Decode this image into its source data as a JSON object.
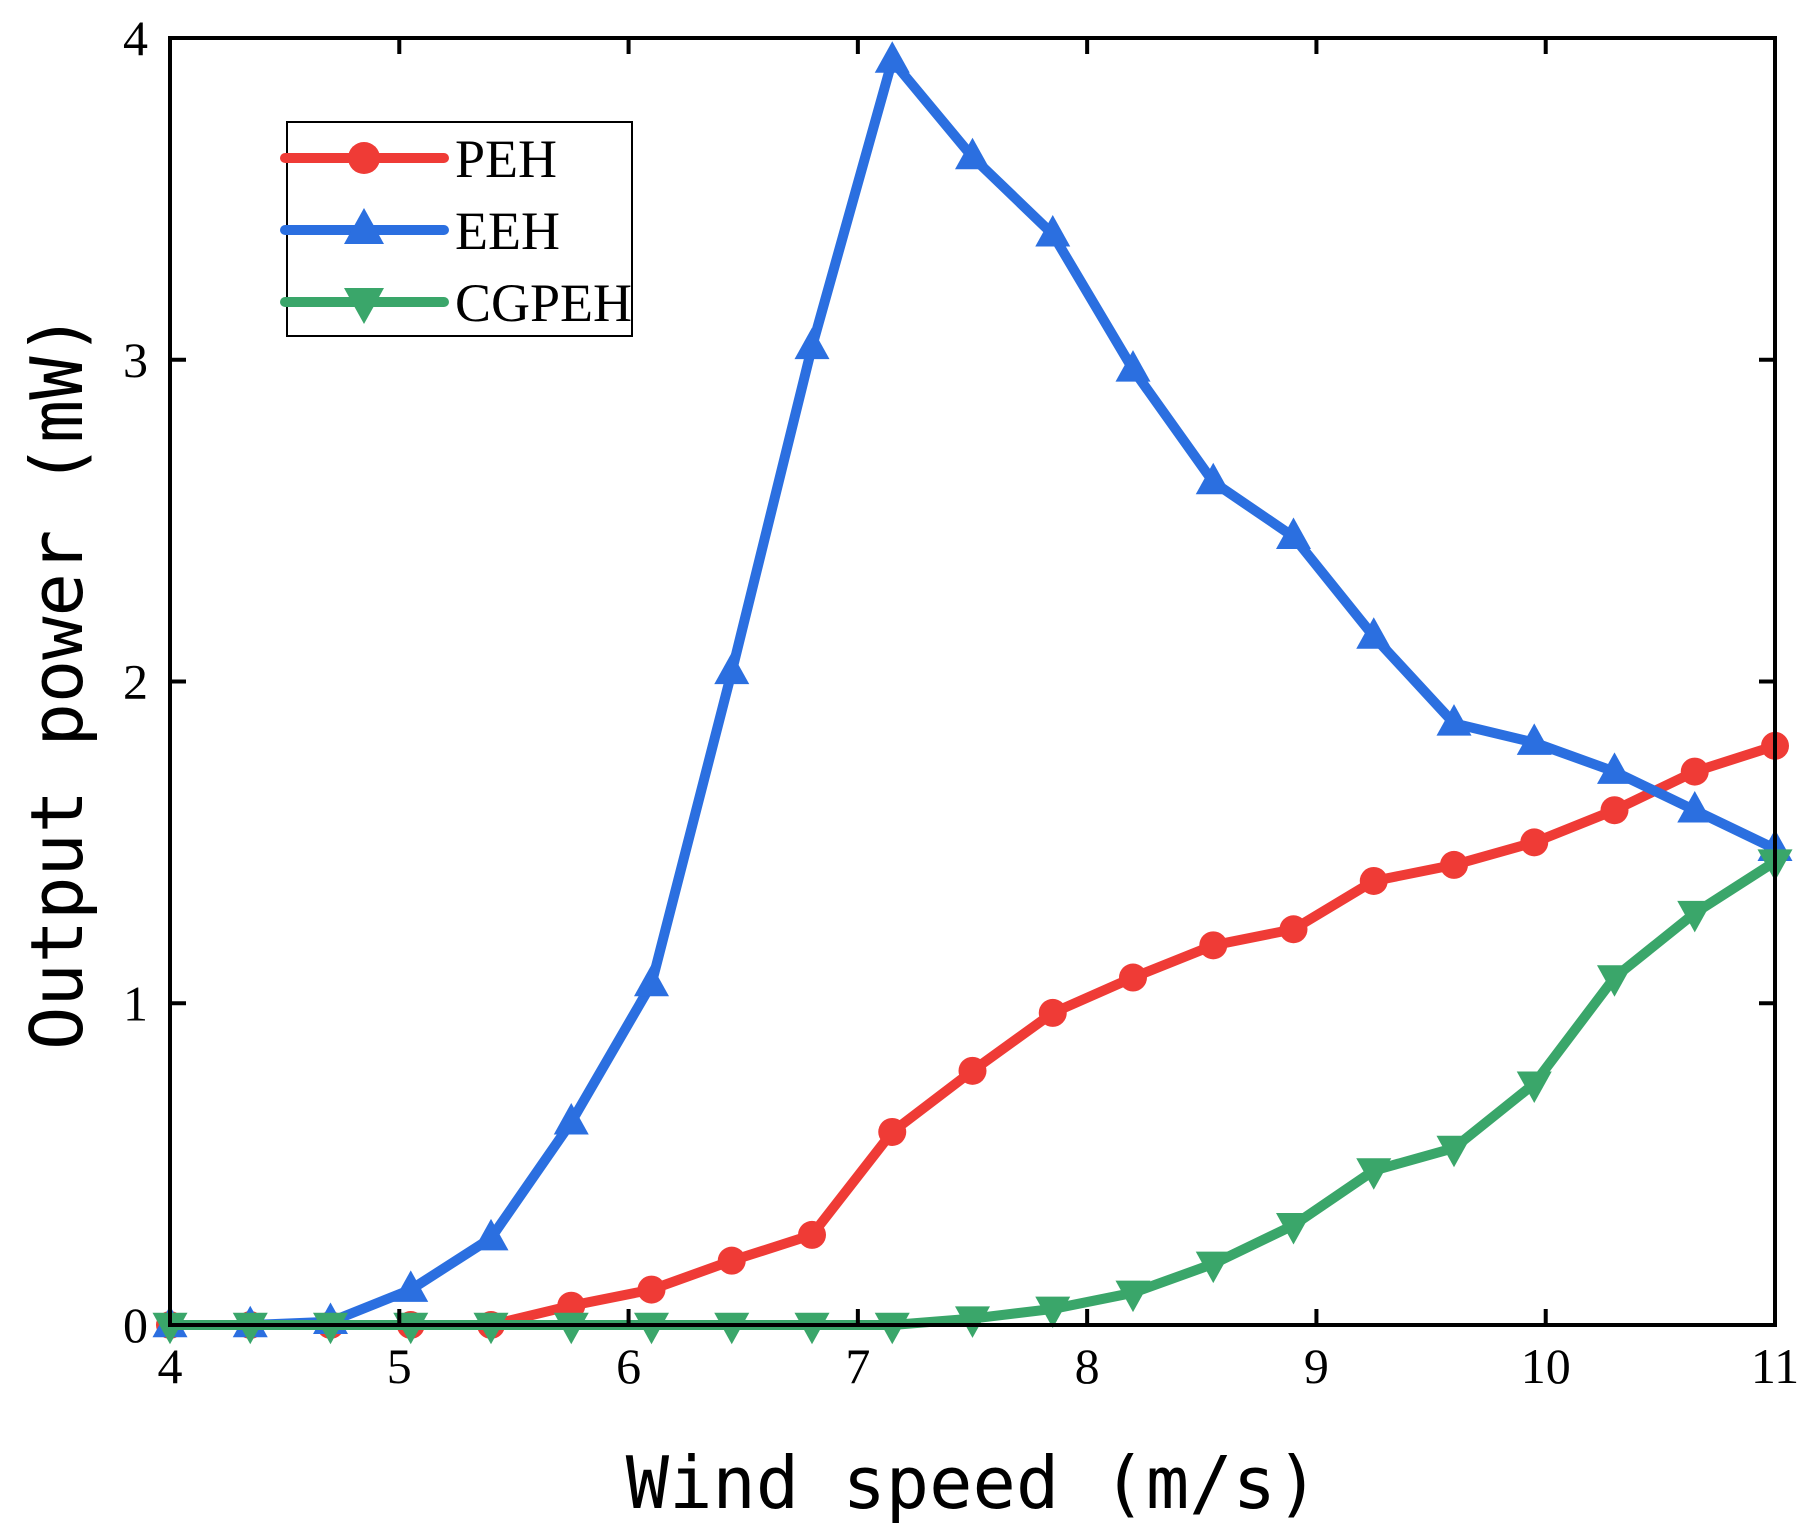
{
  "chart_data": {
    "type": "line",
    "title": "",
    "xlabel": "Wind speed (m/s)",
    "ylabel": "Output power (mW)",
    "xlim": [
      4,
      11
    ],
    "ylim": [
      0,
      4
    ],
    "xticks": [
      4,
      5,
      6,
      7,
      8,
      9,
      10,
      11
    ],
    "yticks": [
      0,
      1,
      2,
      3,
      4
    ],
    "grid": false,
    "legend_position": "top-left",
    "x": [
      4.0,
      4.35,
      4.7,
      5.05,
      5.4,
      5.75,
      6.1,
      6.45,
      6.8,
      7.15,
      7.5,
      7.85,
      8.2,
      8.55,
      8.9,
      9.25,
      9.6,
      9.95,
      10.3,
      10.65,
      11.0
    ],
    "series": [
      {
        "name": "PEH",
        "color": "#ef3b36",
        "marker": "circle",
        "values": [
          0,
          0,
          0,
          0,
          0,
          0.06,
          0.11,
          0.2,
          0.28,
          0.6,
          0.79,
          0.97,
          1.08,
          1.18,
          1.23,
          1.38,
          1.43,
          1.5,
          1.6,
          1.72,
          1.8
        ]
      },
      {
        "name": "EEH",
        "color": "#2b6fe0",
        "marker": "triangle-up",
        "values": [
          0,
          0,
          0.01,
          0.11,
          0.27,
          0.63,
          1.06,
          2.03,
          3.04,
          3.93,
          3.63,
          3.39,
          2.97,
          2.62,
          2.45,
          2.14,
          1.87,
          1.81,
          1.72,
          1.6,
          1.48
        ]
      },
      {
        "name": "CGPEH",
        "color": "#3aa66a",
        "marker": "triangle-down",
        "values": [
          0,
          0,
          0,
          0,
          0,
          0,
          0,
          0,
          0,
          0,
          0.02,
          0.05,
          0.1,
          0.19,
          0.31,
          0.48,
          0.55,
          0.75,
          1.08,
          1.28,
          1.44
        ]
      }
    ]
  }
}
